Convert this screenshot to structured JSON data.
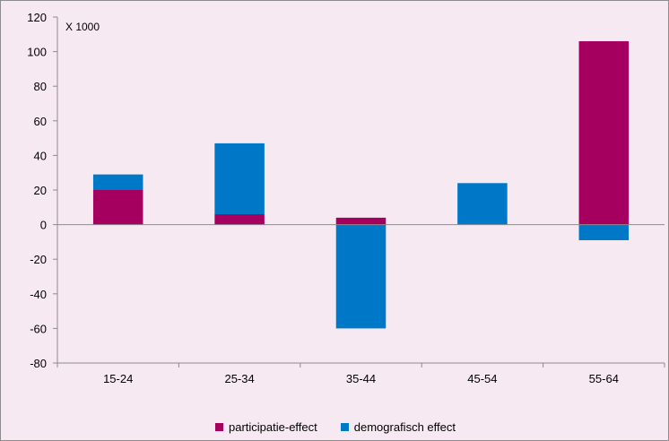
{
  "chart_data": {
    "type": "bar",
    "stacked": true,
    "categories": [
      "15-24",
      "25-34",
      "35-44",
      "45-54",
      "55-64"
    ],
    "series": [
      {
        "name": "participatie-effect",
        "color": "#a5005f",
        "values": [
          20,
          6,
          4,
          0,
          106
        ]
      },
      {
        "name": "demografisch effect",
        "color": "#0078c8",
        "values": [
          9,
          41,
          -60,
          24,
          -9
        ]
      }
    ],
    "ylim": [
      -80,
      120
    ],
    "yticks": [
      -80,
      -60,
      -40,
      -20,
      0,
      20,
      40,
      60,
      80,
      100,
      120
    ],
    "unit_label": "X 1000",
    "legend_position": "bottom",
    "grid": false
  }
}
